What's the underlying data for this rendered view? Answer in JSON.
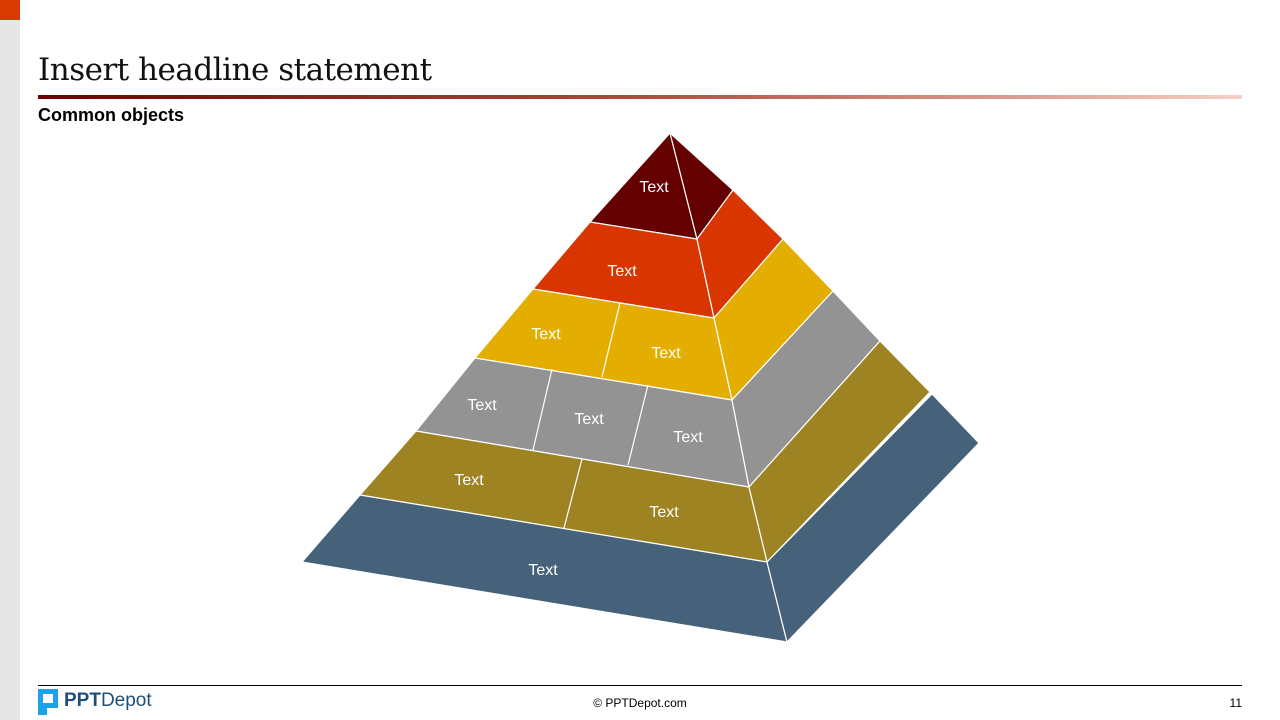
{
  "slide": {
    "title": "Insert headline statement",
    "subtitle": "Common objects",
    "accent_color": "#D83B01"
  },
  "pyramid": {
    "levels": [
      {
        "color": "#650000",
        "labels": [
          "Text"
        ]
      },
      {
        "color": "#D83500",
        "labels": [
          "Text"
        ]
      },
      {
        "color": "#E3AE00",
        "labels": [
          "Text",
          "Text"
        ]
      },
      {
        "color": "#939393",
        "labels": [
          "Text",
          "Text",
          "Text"
        ]
      },
      {
        "color": "#9E8323",
        "labels": [
          "Text",
          "Text"
        ]
      },
      {
        "color": "#46627B",
        "labels": [
          "Text"
        ]
      }
    ]
  },
  "footer": {
    "logo_bold": "PPT",
    "logo_regular": "Depot",
    "copyright": "© PPTDepot.com",
    "page_number": "11"
  }
}
